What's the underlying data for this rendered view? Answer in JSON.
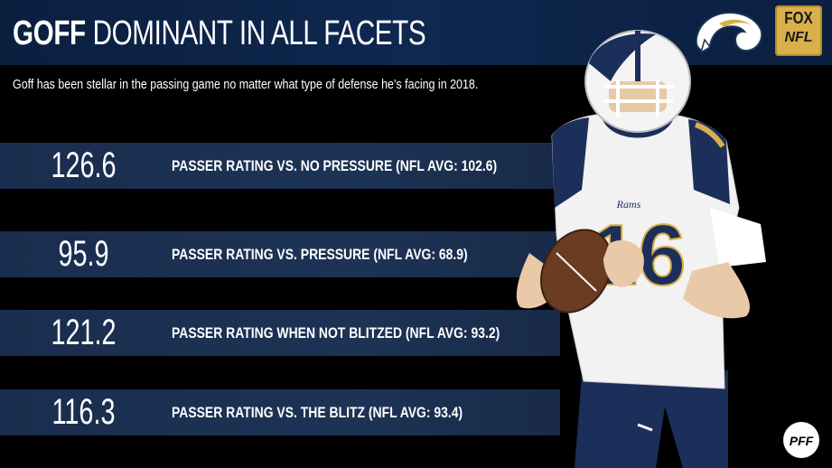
{
  "header": {
    "title_bold": "GOFF",
    "title_rest": "DOMINANT IN ALL FACETS",
    "subtitle": "Goff has been stellar in the passing game no matter what type of defense he’s facing in 2018."
  },
  "stats": [
    {
      "value": "126.6",
      "label": "PASSER RATING VS. NO PRESSURE (NFL AVG: 102.6)"
    },
    {
      "value": "95.9",
      "label": "PASSER RATING VS. PRESSURE (NFL AVG: 68.9)"
    },
    {
      "value": "121.2",
      "label": "PASSER RATING WHEN NOT BLITZED (NFL AVG: 93.2)"
    },
    {
      "value": "116.3",
      "label": "PASSER RATING VS. THE BLITZ (NFL AVG: 93.4)"
    }
  ],
  "logos": {
    "fox": "FOX",
    "nfl": "NFL",
    "pff": "PFF",
    "jersey_number": "16",
    "jersey_brand": "Rams"
  },
  "colors": {
    "header_navy": "#0f2850",
    "bar_navy": "#1d3355",
    "rams_gold": "#d8b04a",
    "white": "#ffffff"
  }
}
